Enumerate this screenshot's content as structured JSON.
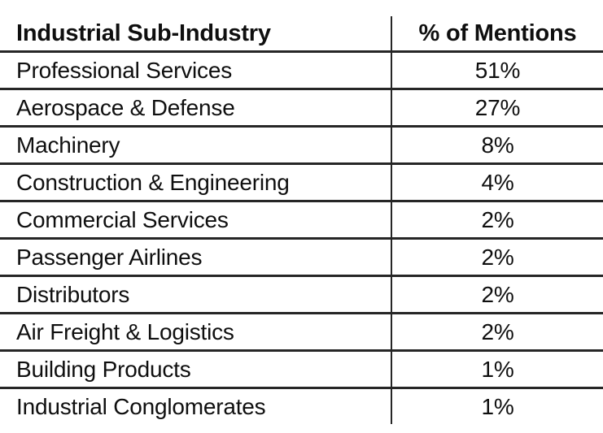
{
  "table": {
    "columns": [
      {
        "label": "Industrial Sub-Industry"
      },
      {
        "label": "% of Mentions"
      }
    ],
    "rows": [
      [
        "Professional Services",
        "51%"
      ],
      [
        "Aerospace & Defense",
        "27%"
      ],
      [
        "Machinery",
        "8%"
      ],
      [
        "Construction & Engineering",
        "4%"
      ],
      [
        "Commercial Services",
        "2%"
      ],
      [
        "Passenger Airlines",
        "2%"
      ],
      [
        "Distributors",
        "2%"
      ],
      [
        "Air Freight & Logistics",
        "2%"
      ],
      [
        "Building Products",
        "1%"
      ],
      [
        "Industrial Conglomerates",
        "1%"
      ]
    ]
  },
  "chart_data": {
    "type": "table",
    "title": "",
    "columns": [
      "Industrial Sub-Industry",
      "% of Mentions"
    ],
    "categories": [
      "Professional Services",
      "Aerospace & Defense",
      "Machinery",
      "Construction & Engineering",
      "Commercial Services",
      "Passenger Airlines",
      "Distributors",
      "Air Freight & Logistics",
      "Building Products",
      "Industrial Conglomerates"
    ],
    "values": [
      51,
      27,
      8,
      4,
      2,
      2,
      2,
      2,
      1,
      1
    ],
    "value_unit": "%"
  },
  "colors": {
    "background": "#ffffff",
    "text": "#0f0f0f",
    "border": "#262626"
  }
}
